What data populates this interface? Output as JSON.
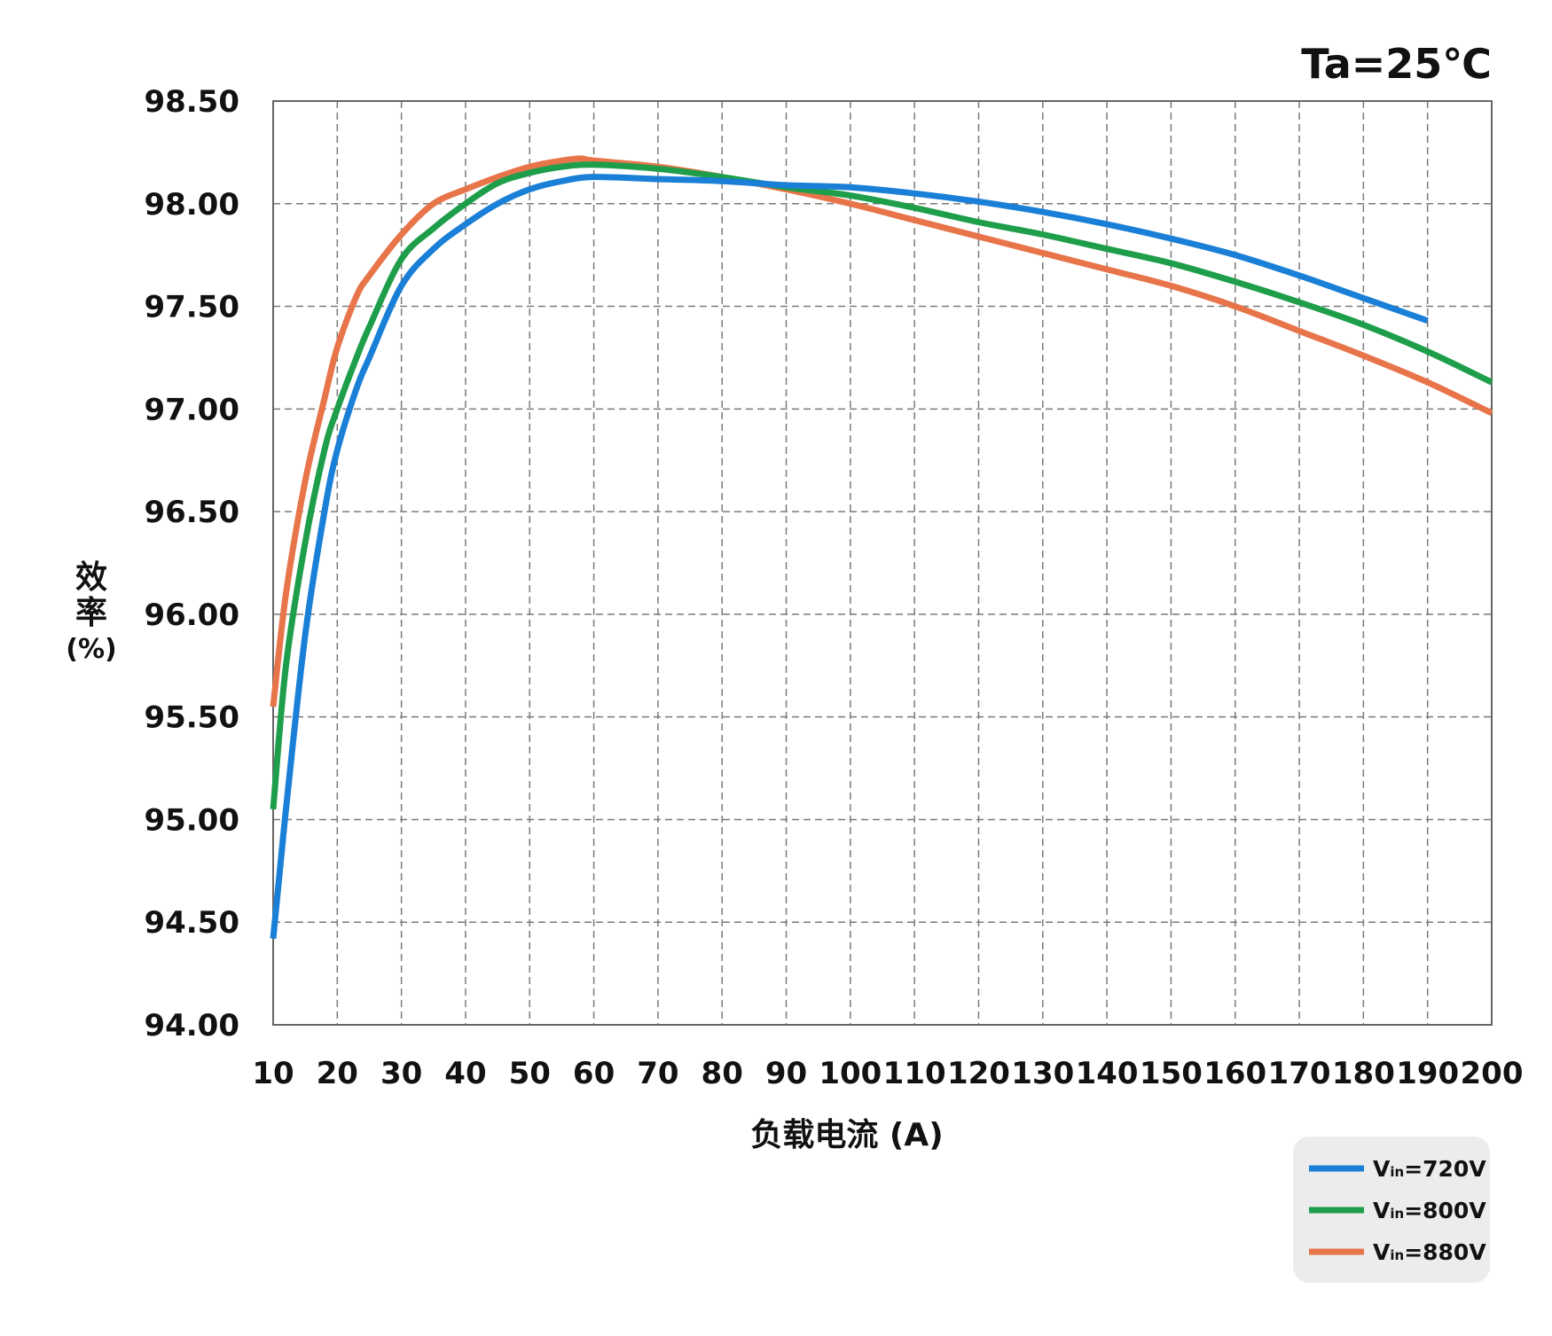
{
  "chart_data": {
    "type": "line",
    "annotation": "Ta=25℃",
    "xlabel": "负载电流 (A)",
    "ylabel_line1": "效",
    "ylabel_line2": "率",
    "ylabel_unit": "(%)",
    "xlim": [
      10,
      200
    ],
    "ylim": [
      94.0,
      98.5
    ],
    "x_ticks": [
      10,
      20,
      30,
      40,
      50,
      60,
      70,
      80,
      90,
      100,
      110,
      120,
      130,
      140,
      150,
      160,
      170,
      180,
      190,
      200
    ],
    "y_ticks": [
      "94.00",
      "94.50",
      "95.00",
      "95.50",
      "96.00",
      "96.50",
      "97.00",
      "97.50",
      "98.00",
      "98.50"
    ],
    "grid": true,
    "legend_position": "bottom-right",
    "series": [
      {
        "name_main": "V",
        "name_sub": "in",
        "name_rest": "=720V",
        "color": "#1a7fd6",
        "x": [
          10,
          12,
          15,
          18,
          20,
          23,
          25,
          30,
          35,
          40,
          45,
          50,
          55,
          60,
          70,
          80,
          90,
          100,
          110,
          120,
          130,
          140,
          150,
          160,
          170,
          180,
          190
        ],
        "y": [
          94.42,
          95.05,
          95.9,
          96.5,
          96.8,
          97.1,
          97.25,
          97.6,
          97.78,
          97.9,
          98.0,
          98.07,
          98.11,
          98.13,
          98.12,
          98.11,
          98.09,
          98.08,
          98.05,
          98.01,
          97.96,
          97.9,
          97.83,
          97.75,
          97.65,
          97.54,
          97.43
        ]
      },
      {
        "name_main": "V",
        "name_sub": "in",
        "name_rest": "=800V",
        "color": "#1e9e4a",
        "x": [
          10,
          12,
          15,
          18,
          20,
          23,
          25,
          30,
          35,
          40,
          45,
          50,
          55,
          60,
          70,
          80,
          90,
          100,
          110,
          120,
          130,
          140,
          150,
          160,
          170,
          180,
          190,
          200
        ],
        "y": [
          95.05,
          95.75,
          96.35,
          96.8,
          97.0,
          97.25,
          97.4,
          97.73,
          97.88,
          98.0,
          98.1,
          98.15,
          98.18,
          98.19,
          98.17,
          98.13,
          98.08,
          98.04,
          97.98,
          97.91,
          97.85,
          97.78,
          97.71,
          97.62,
          97.52,
          97.41,
          97.28,
          97.13
        ]
      },
      {
        "name_main": "V",
        "name_sub": "in",
        "name_rest": "=880V",
        "color": "#e8744a",
        "x": [
          10,
          12,
          15,
          18,
          20,
          23,
          25,
          30,
          35,
          40,
          45,
          50,
          55,
          58,
          60,
          70,
          80,
          90,
          100,
          110,
          120,
          130,
          140,
          150,
          160,
          170,
          180,
          190,
          200
        ],
        "y": [
          95.55,
          96.1,
          96.65,
          97.05,
          97.3,
          97.55,
          97.65,
          97.85,
          98.0,
          98.07,
          98.13,
          98.18,
          98.21,
          98.22,
          98.21,
          98.18,
          98.13,
          98.07,
          98.0,
          97.92,
          97.84,
          97.76,
          97.68,
          97.6,
          97.5,
          97.38,
          97.26,
          97.13,
          96.98
        ]
      }
    ]
  }
}
